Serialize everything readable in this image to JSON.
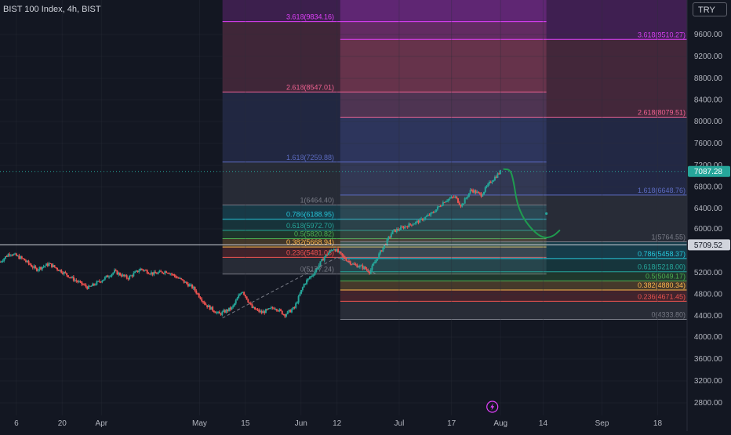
{
  "header": {
    "title": "BIST 100 Index, 4h, BIST",
    "currency_button": "TRY"
  },
  "colors": {
    "background": "#131722",
    "up_candle": "#26a69a",
    "down_candle": "#ef5350",
    "drawing": "#1f9b4f",
    "current_price_badge": "#26a69a",
    "crosshair_badge": "#d1d4dc"
  },
  "icons": {
    "events": "lightning-icon"
  },
  "chart_data": {
    "type": "candlestick",
    "ylim": [
      2600,
      10000
    ],
    "y_ticks": [
      {
        "label": "9600.00",
        "value": 9600
      },
      {
        "label": "9200.00",
        "value": 9200
      },
      {
        "label": "8800.00",
        "value": 8800
      },
      {
        "label": "8400.00",
        "value": 8400
      },
      {
        "label": "8000.00",
        "value": 8000
      },
      {
        "label": "7600.00",
        "value": 7600
      },
      {
        "label": "7200.00",
        "value": 7200
      },
      {
        "label": "6800.00",
        "value": 6800
      },
      {
        "label": "6400.00",
        "value": 6400
      },
      {
        "label": "6000.00",
        "value": 6000
      },
      {
        "label": "5200.00",
        "value": 5200
      },
      {
        "label": "4800.00",
        "value": 4800
      },
      {
        "label": "4400.00",
        "value": 4400
      },
      {
        "label": "4000.00",
        "value": 4000
      },
      {
        "label": "3600.00",
        "value": 3600
      },
      {
        "label": "3200.00",
        "value": 3200
      },
      {
        "label": "2800.00",
        "value": 2800
      }
    ],
    "x_ticks": [
      {
        "label": "6",
        "date": "2023-03-06"
      },
      {
        "label": "20",
        "date": "2023-03-20"
      },
      {
        "label": "Apr",
        "date": "2023-04-01"
      },
      {
        "label": "May",
        "date": "2023-05-01"
      },
      {
        "label": "15",
        "date": "2023-05-15"
      },
      {
        "label": "Jun",
        "date": "2023-06-01"
      },
      {
        "label": "12",
        "date": "2023-06-12"
      },
      {
        "label": "Jul",
        "date": "2023-07-01"
      },
      {
        "label": "17",
        "date": "2023-07-17"
      },
      {
        "label": "Aug",
        "date": "2023-08-01"
      },
      {
        "label": "14",
        "date": "2023-08-14"
      },
      {
        "label": "Sep",
        "date": "2023-09-01"
      },
      {
        "label": "18",
        "date": "2023-09-18"
      }
    ],
    "x_range": [
      "2023-03-01",
      "2023-09-27"
    ],
    "current_price": {
      "label": "7087.28",
      "value": 7087.28
    },
    "crosshair_price": {
      "label": "5709.52",
      "value": 5709.52
    },
    "price_path": [
      {
        "date": "2023-03-01",
        "close": 5400
      },
      {
        "date": "2023-03-04",
        "close": 5560
      },
      {
        "date": "2023-03-08",
        "close": 5450
      },
      {
        "date": "2023-03-12",
        "close": 5260
      },
      {
        "date": "2023-03-16",
        "close": 5360
      },
      {
        "date": "2023-03-20",
        "close": 5220
      },
      {
        "date": "2023-03-24",
        "close": 5060
      },
      {
        "date": "2023-03-28",
        "close": 4920
      },
      {
        "date": "2023-04-01",
        "close": 5060
      },
      {
        "date": "2023-04-05",
        "close": 5220
      },
      {
        "date": "2023-04-09",
        "close": 5100
      },
      {
        "date": "2023-04-13",
        "close": 5270
      },
      {
        "date": "2023-04-17",
        "close": 5180
      },
      {
        "date": "2023-04-21",
        "close": 5230
      },
      {
        "date": "2023-04-25",
        "close": 5080
      },
      {
        "date": "2023-04-29",
        "close": 4920
      },
      {
        "date": "2023-05-03",
        "close": 4600
      },
      {
        "date": "2023-05-07",
        "close": 4430
      },
      {
        "date": "2023-05-11",
        "close": 4550
      },
      {
        "date": "2023-05-14",
        "close": 4880
      },
      {
        "date": "2023-05-17",
        "close": 4550
      },
      {
        "date": "2023-05-20",
        "close": 4460
      },
      {
        "date": "2023-05-24",
        "close": 4560
      },
      {
        "date": "2023-05-27",
        "close": 4420
      },
      {
        "date": "2023-05-30",
        "close": 4550
      },
      {
        "date": "2023-06-02",
        "close": 5000
      },
      {
        "date": "2023-06-05",
        "close": 5200
      },
      {
        "date": "2023-06-08",
        "close": 5480
      },
      {
        "date": "2023-06-11",
        "close": 5650
      },
      {
        "date": "2023-06-14",
        "close": 5480
      },
      {
        "date": "2023-06-17",
        "close": 5350
      },
      {
        "date": "2023-06-20",
        "close": 5300
      },
      {
        "date": "2023-06-22",
        "close": 5220
      },
      {
        "date": "2023-06-25",
        "close": 5550
      },
      {
        "date": "2023-06-29",
        "close": 5950
      },
      {
        "date": "2023-07-03",
        "close": 6050
      },
      {
        "date": "2023-07-07",
        "close": 6150
      },
      {
        "date": "2023-07-11",
        "close": 6300
      },
      {
        "date": "2023-07-15",
        "close": 6550
      },
      {
        "date": "2023-07-18",
        "close": 6620
      },
      {
        "date": "2023-07-20",
        "close": 6450
      },
      {
        "date": "2023-07-23",
        "close": 6750
      },
      {
        "date": "2023-07-26",
        "close": 6650
      },
      {
        "date": "2023-07-29",
        "close": 6900
      },
      {
        "date": "2023-08-01",
        "close": 7087
      }
    ],
    "fib_left": {
      "start": "2023-05-08",
      "end": "2023-08-15",
      "levels": [
        {
          "label": "3.618(9834.16)",
          "value": 9834.16,
          "color": "#e040fb"
        },
        {
          "label": "2.618(8547.01)",
          "value": 8547.01,
          "color": "#f06292"
        },
        {
          "label": "1.618(7259.88)",
          "value": 7259.88,
          "color": "#5c6bc0"
        },
        {
          "label": "1(6464.40)",
          "value": 6464.4,
          "color": "#787b86"
        },
        {
          "label": "0.786(6188.95)",
          "value": 6188.95,
          "color": "#26c6da"
        },
        {
          "label": "0.618(5972.70)",
          "value": 5972.7,
          "color": "#26a69a"
        },
        {
          "label": "0.5(5820.82)",
          "value": 5820.82,
          "color": "#4caf50"
        },
        {
          "label": "0.382(5668.94)",
          "value": 5668.94,
          "color": "#ffb74d"
        },
        {
          "label": "0.236(5481.06)",
          "value": 5481.06,
          "color": "#ef5350"
        },
        {
          "label": "0(5177.24)",
          "value": 5177.24,
          "color": "#787b86"
        }
      ]
    },
    "fib_right": {
      "start": "2023-06-13",
      "end": "2023-09-27",
      "levels": [
        {
          "label": "3.618(9510.27)",
          "value": 9510.27,
          "color": "#e040fb"
        },
        {
          "label": "2.618(8079.51)",
          "value": 8079.51,
          "color": "#f06292"
        },
        {
          "label": "1.618(6648.76)",
          "value": 6648.76,
          "color": "#5c6bc0"
        },
        {
          "label": "1(5764.55)",
          "value": 5764.55,
          "color": "#787b86"
        },
        {
          "label": "0.786(5458.37)",
          "value": 5458.37,
          "color": "#26c6da"
        },
        {
          "label": "0.618(5218.00)",
          "value": 5218.0,
          "color": "#26a69a"
        },
        {
          "label": "0.5(5049.17)",
          "value": 5049.17,
          "color": "#4caf50"
        },
        {
          "label": "0.382(4880.34)",
          "value": 4880.34,
          "color": "#ffb74d"
        },
        {
          "label": "0.236(4671.45)",
          "value": 4671.45,
          "color": "#ef5350"
        },
        {
          "label": "0(4333.80)",
          "value": 4333.8,
          "color": "#787b86"
        }
      ]
    },
    "projection_curve": [
      {
        "date": "2023-08-02",
        "value": 7130
      },
      {
        "date": "2023-08-04",
        "value": 7120
      },
      {
        "date": "2023-08-05",
        "value": 6900
      },
      {
        "date": "2023-08-06",
        "value": 6500
      },
      {
        "date": "2023-08-08",
        "value": 6200
      },
      {
        "date": "2023-08-11",
        "value": 5960
      },
      {
        "date": "2023-08-14",
        "value": 5830
      },
      {
        "date": "2023-08-17",
        "value": 5860
      },
      {
        "date": "2023-08-19",
        "value": 5970
      }
    ],
    "projection_dot": {
      "date": "2023-08-15",
      "value": 6300
    }
  }
}
